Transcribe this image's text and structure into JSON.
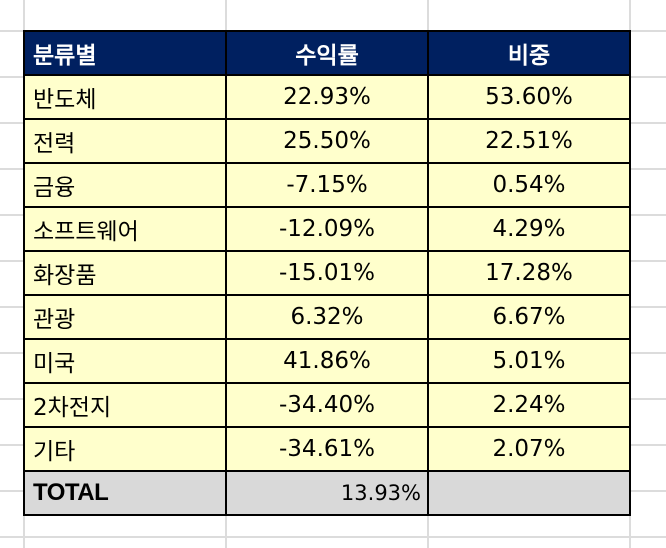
{
  "table": {
    "headers": [
      "분류별",
      "수익률",
      "비중"
    ],
    "rows": [
      {
        "category": "반도체",
        "return": "22.93%",
        "weight": "53.60%"
      },
      {
        "category": "전력",
        "return": "25.50%",
        "weight": "22.51%"
      },
      {
        "category": "금융",
        "return": "-7.15%",
        "weight": "0.54%"
      },
      {
        "category": "소프트웨어",
        "return": "-12.09%",
        "weight": "4.29%"
      },
      {
        "category": "화장품",
        "return": "-15.01%",
        "weight": "17.28%"
      },
      {
        "category": "관광",
        "return": "6.32%",
        "weight": "6.67%"
      },
      {
        "category": "미국",
        "return": "41.86%",
        "weight": "5.01%"
      },
      {
        "category": "2차전지",
        "return": "-34.40%",
        "weight": "2.24%"
      },
      {
        "category": "기타",
        "return": "-34.61%",
        "weight": "2.07%"
      }
    ],
    "total": {
      "label": "TOTAL",
      "return": "13.93%",
      "weight": ""
    }
  },
  "colors": {
    "header_bg": "#002060",
    "header_text": "#FFFFFF",
    "row_bg": "#FFFFCC",
    "total_bg": "#D9D9D9",
    "gridline": "#DCDCDC"
  }
}
